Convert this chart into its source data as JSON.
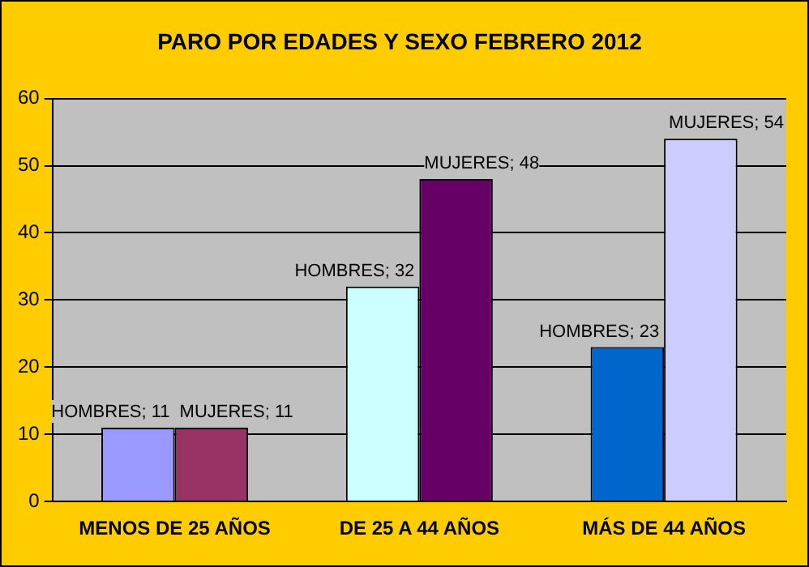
{
  "chart_data": {
    "type": "bar",
    "title": "PARO POR EDADES Y SEXO FEBRERO 2012",
    "categories": [
      "MENOS DE 25 AÑOS",
      "DE 25 A 44 AÑOS",
      "MÁS DE 44 AÑOS"
    ],
    "series": [
      {
        "colors": [
          "#9999ff",
          "#ccffff",
          "#0066cc"
        ],
        "values": [
          11,
          32,
          23
        ],
        "value_labels": [
          "HOMBRES; 11",
          "HOMBRES; 32",
          "HOMBRES; 23"
        ]
      },
      {
        "colors": [
          "#993366",
          "#660066",
          "#ccccff"
        ],
        "values": [
          11,
          48,
          54
        ],
        "value_labels": [
          "MUJERES; 11",
          "MUJERES; 48",
          "MUJERES; 54"
        ]
      }
    ],
    "ylim": [
      0,
      60
    ],
    "yticks": [
      0,
      10,
      20,
      30,
      40,
      50,
      60
    ],
    "grid": "y",
    "legend": false
  }
}
